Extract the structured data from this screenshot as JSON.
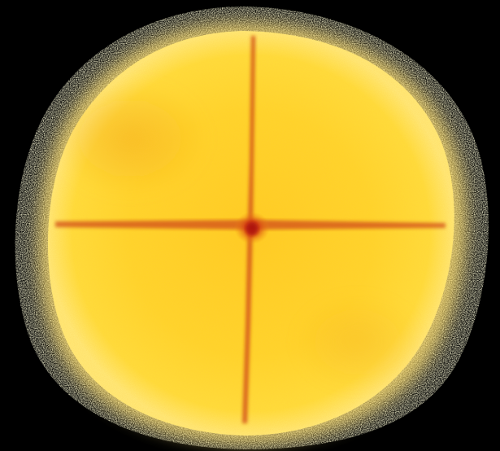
{
  "image": {
    "subject": "diffraction-pattern",
    "background_color": "#000000",
    "colormap": [
      "#ffffe0",
      "#ffe04a",
      "#ffc21a",
      "#f08a10",
      "#c02010"
    ],
    "texture": "speckle-noise",
    "features": [
      {
        "name": "bright-disc",
        "color": "#ffd21e"
      },
      {
        "name": "vertical-streak",
        "color": "#d4541a"
      },
      {
        "name": "horizontal-streak",
        "color": "#d4541a"
      },
      {
        "name": "central-peak",
        "color": "#b01410"
      },
      {
        "name": "speckled-halo",
        "color": "#ffffc8"
      }
    ]
  }
}
